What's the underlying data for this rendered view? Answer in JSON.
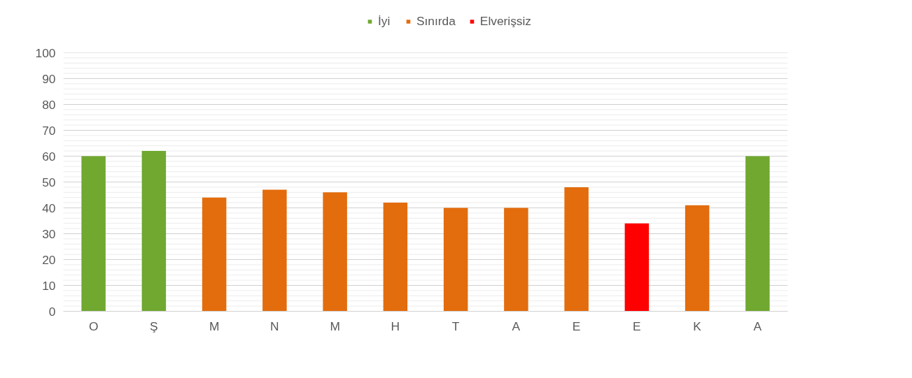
{
  "chart_data": {
    "type": "bar",
    "categories": [
      "O",
      "Ş",
      "M",
      "N",
      "M",
      "H",
      "T",
      "A",
      "E",
      "E",
      "K",
      "A"
    ],
    "series": [
      {
        "name": "İyi",
        "color": "#70a830",
        "values": [
          60,
          62,
          null,
          null,
          null,
          null,
          null,
          null,
          null,
          null,
          null,
          60
        ]
      },
      {
        "name": "Sınırda",
        "color": "#e36c0d",
        "values": [
          null,
          null,
          44,
          47,
          46,
          42,
          40,
          40,
          48,
          null,
          41,
          null
        ]
      },
      {
        "name": "Elverişsiz",
        "color": "#ff0000",
        "values": [
          null,
          null,
          null,
          null,
          null,
          null,
          null,
          null,
          null,
          34,
          null,
          null
        ]
      }
    ],
    "ylim": [
      0,
      100
    ],
    "yticks": [
      0,
      {
        "value": 2,
        "label": null
      },
      {
        "value": 4,
        "label": null
      },
      {
        "value": 6,
        "label": null
      },
      {
        "value": 8,
        "label": null
      },
      10,
      {
        "value": 12,
        "label": null
      },
      {
        "value": 14,
        "label": null
      },
      {
        "value": 16,
        "label": null
      },
      {
        "value": 18,
        "label": null
      },
      20,
      {
        "value": 22,
        "label": null
      },
      {
        "value": 24,
        "label": null
      },
      {
        "value": 26,
        "label": null
      },
      {
        "value": 28,
        "label": null
      },
      30,
      {
        "value": 32,
        "label": null
      },
      {
        "value": 34,
        "label": null
      },
      {
        "value": 36,
        "label": null
      },
      {
        "value": 38,
        "label": null
      },
      40,
      {
        "value": 42,
        "label": null
      },
      {
        "value": 44,
        "label": null
      },
      {
        "value": 46,
        "label": null
      },
      {
        "value": 48,
        "label": null
      },
      50,
      {
        "value": 52,
        "label": null
      },
      {
        "value": 54,
        "label": null
      },
      {
        "value": 56,
        "label": null
      },
      {
        "value": 58,
        "label": null
      },
      60,
      {
        "value": 62,
        "label": null
      },
      {
        "value": 64,
        "label": null
      },
      {
        "value": 66,
        "label": null
      },
      {
        "value": 68,
        "label": null
      },
      70,
      {
        "value": 72,
        "label": null
      },
      {
        "value": 74,
        "label": null
      },
      {
        "value": 76,
        "label": null
      },
      {
        "value": 78,
        "label": null
      },
      80,
      {
        "value": 82,
        "label": null
      },
      {
        "value": 84,
        "label": null
      },
      {
        "value": 86,
        "label": null
      },
      {
        "value": 88,
        "label": null
      },
      90,
      {
        "value": 92,
        "label": null
      },
      {
        "value": 94,
        "label": null
      },
      {
        "value": 96,
        "label": null
      },
      {
        "value": 98,
        "label": null
      },
      100
    ],
    "grid": "y",
    "legend": "top"
  }
}
